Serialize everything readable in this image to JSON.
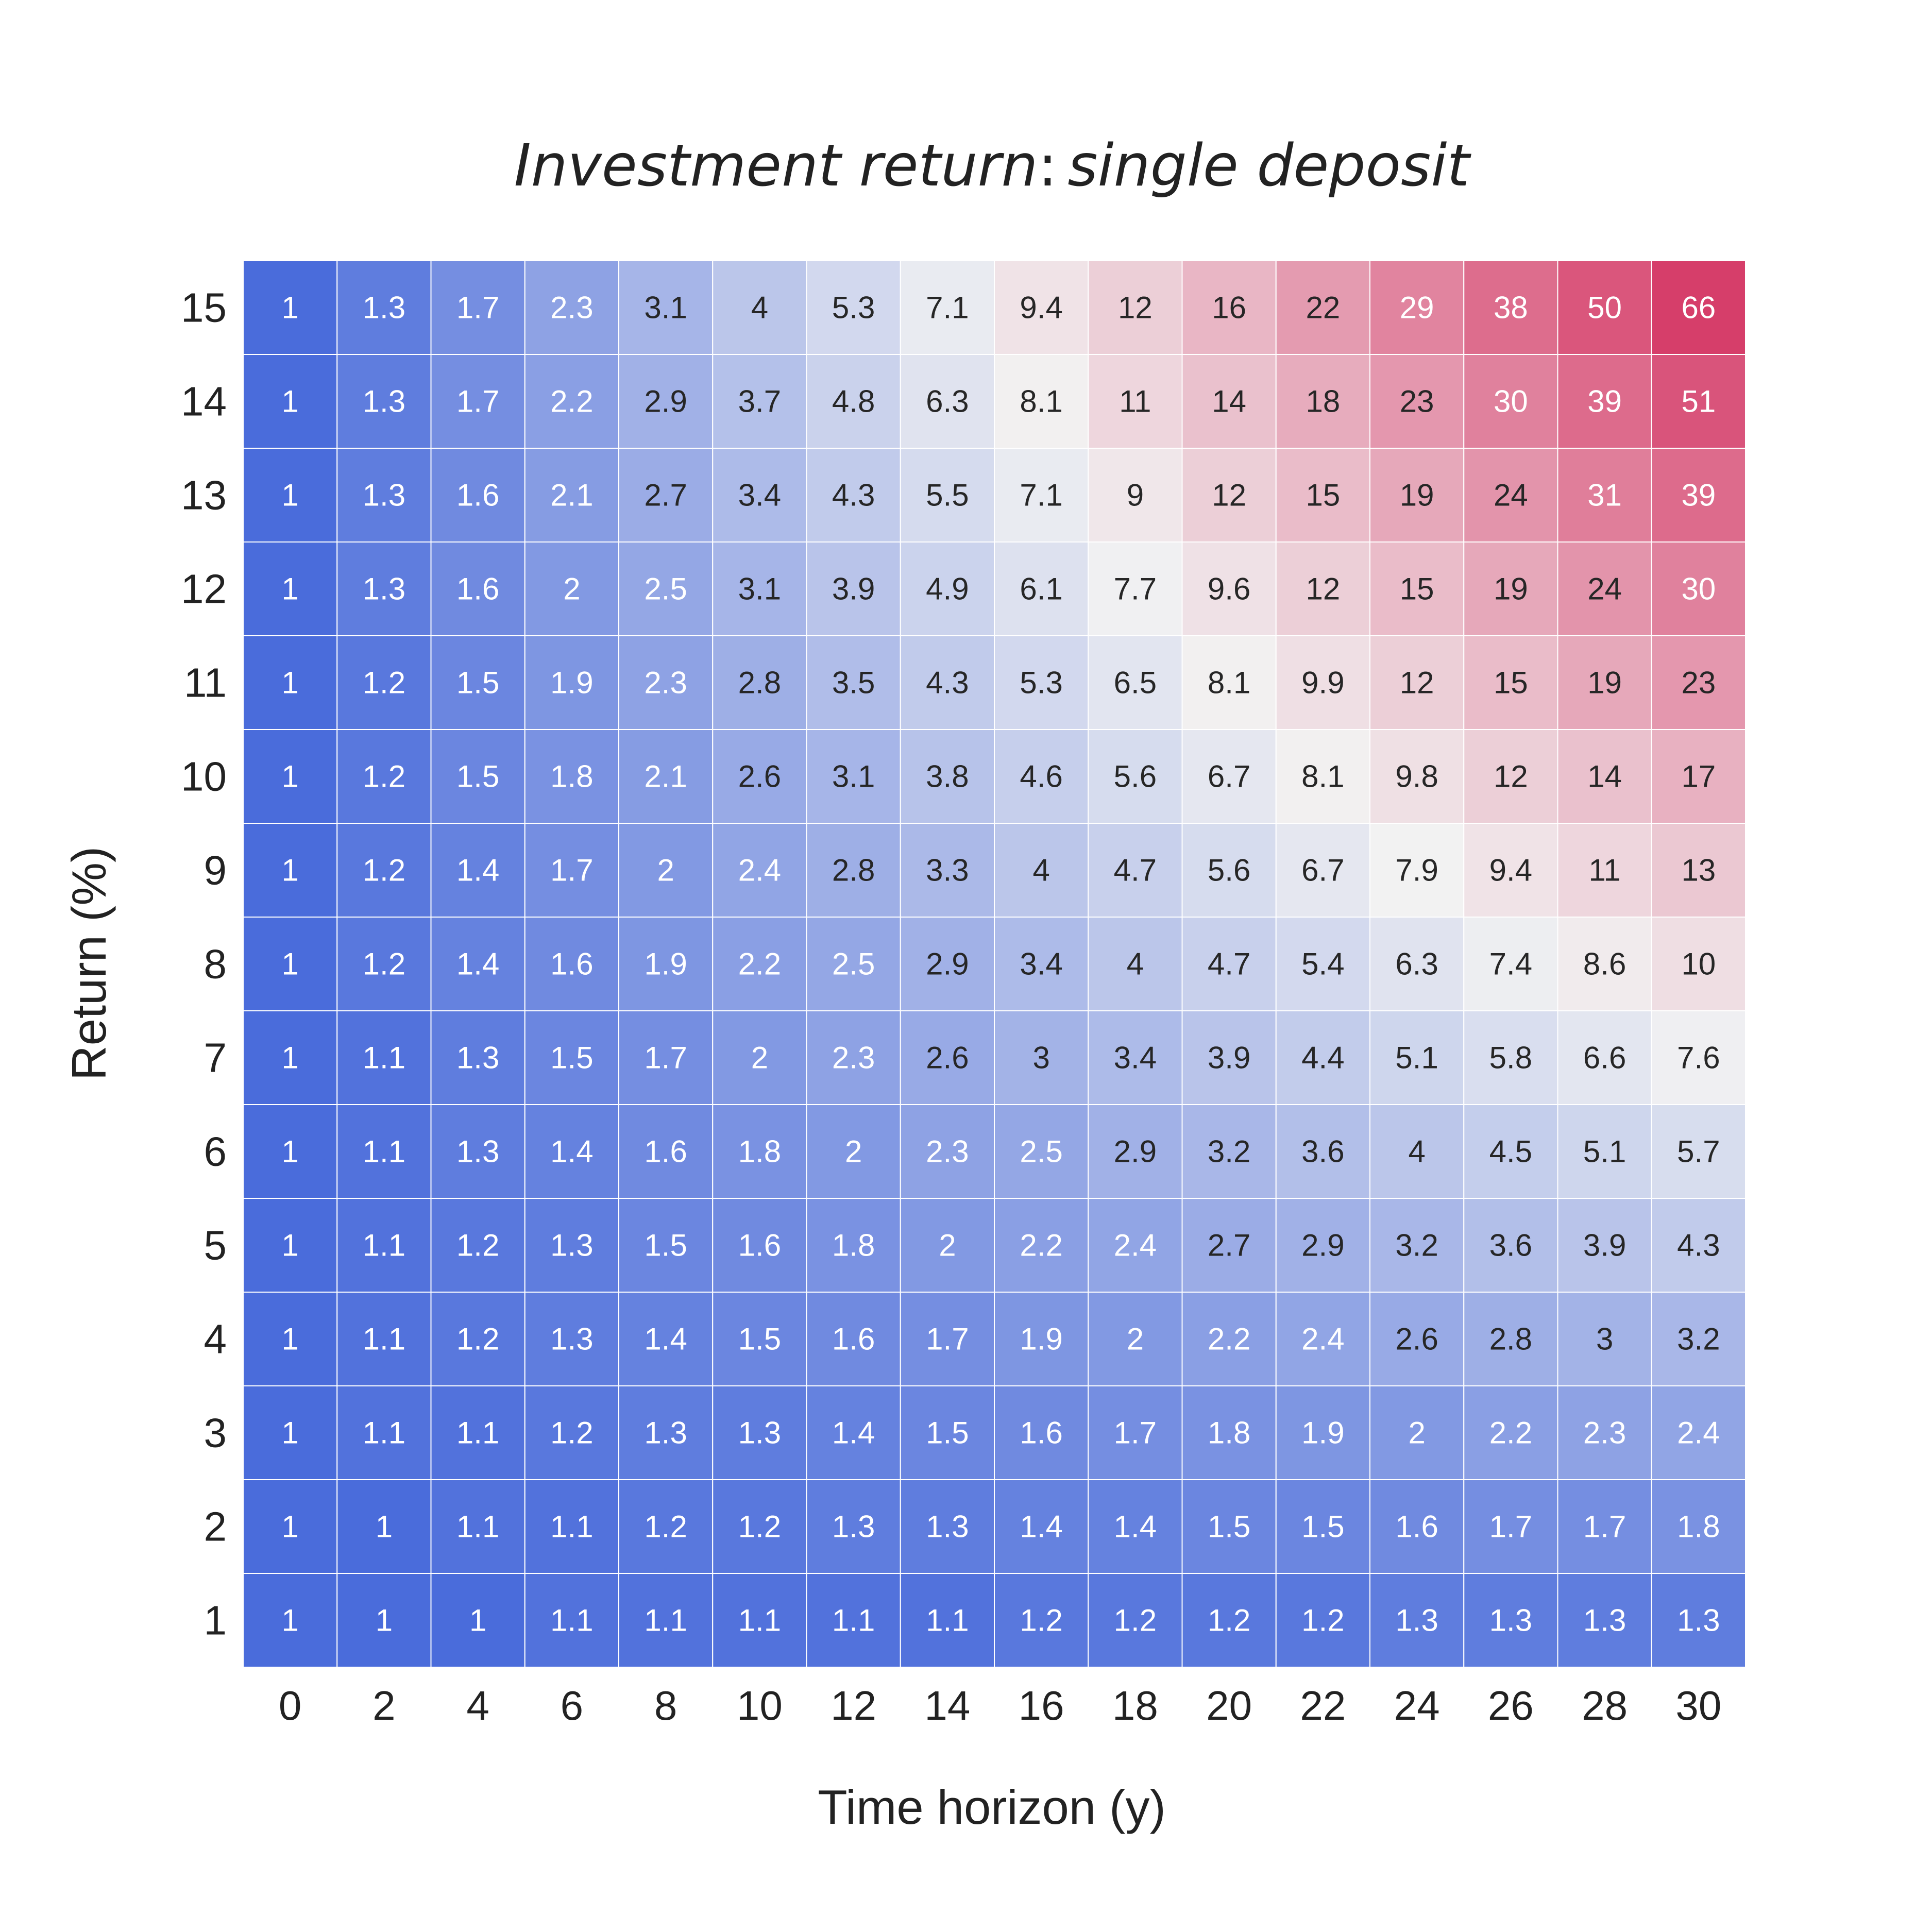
{
  "chart_data": {
    "type": "heatmap",
    "title_main": "Investment return",
    "title_sep": ":",
    "title_sub": "single deposit",
    "xlabel": "Time horizon (y)",
    "ylabel": "Return (%)",
    "x": [
      0,
      2,
      4,
      6,
      8,
      10,
      12,
      14,
      16,
      18,
      20,
      22,
      24,
      26,
      28,
      30
    ],
    "y": [
      15,
      14,
      13,
      12,
      11,
      10,
      9,
      8,
      7,
      6,
      5,
      4,
      3,
      2,
      1
    ],
    "values": [
      [
        "1",
        "1.3",
        "1.7",
        "2.3",
        "3.1",
        "4",
        "5.3",
        "7.1",
        "9.4",
        "12",
        "16",
        "22",
        "29",
        "38",
        "50",
        "66"
      ],
      [
        "1",
        "1.3",
        "1.7",
        "2.2",
        "2.9",
        "3.7",
        "4.8",
        "6.3",
        "8.1",
        "11",
        "14",
        "18",
        "23",
        "30",
        "39",
        "51"
      ],
      [
        "1",
        "1.3",
        "1.6",
        "2.1",
        "2.7",
        "3.4",
        "4.3",
        "5.5",
        "7.1",
        "9",
        "12",
        "15",
        "19",
        "24",
        "31",
        "39"
      ],
      [
        "1",
        "1.3",
        "1.6",
        "2",
        "2.5",
        "3.1",
        "3.9",
        "4.9",
        "6.1",
        "7.7",
        "9.6",
        "12",
        "15",
        "19",
        "24",
        "30"
      ],
      [
        "1",
        "1.2",
        "1.5",
        "1.9",
        "2.3",
        "2.8",
        "3.5",
        "4.3",
        "5.3",
        "6.5",
        "8.1",
        "9.9",
        "12",
        "15",
        "19",
        "23"
      ],
      [
        "1",
        "1.2",
        "1.5",
        "1.8",
        "2.1",
        "2.6",
        "3.1",
        "3.8",
        "4.6",
        "5.6",
        "6.7",
        "8.1",
        "9.8",
        "12",
        "14",
        "17"
      ],
      [
        "1",
        "1.2",
        "1.4",
        "1.7",
        "2",
        "2.4",
        "2.8",
        "3.3",
        "4",
        "4.7",
        "5.6",
        "6.7",
        "7.9",
        "9.4",
        "11",
        "13"
      ],
      [
        "1",
        "1.2",
        "1.4",
        "1.6",
        "1.9",
        "2.2",
        "2.5",
        "2.9",
        "3.4",
        "4",
        "4.7",
        "5.4",
        "6.3",
        "7.4",
        "8.6",
        "10"
      ],
      [
        "1",
        "1.1",
        "1.3",
        "1.5",
        "1.7",
        "2",
        "2.3",
        "2.6",
        "3",
        "3.4",
        "3.9",
        "4.4",
        "5.1",
        "5.8",
        "6.6",
        "7.6"
      ],
      [
        "1",
        "1.1",
        "1.3",
        "1.4",
        "1.6",
        "1.8",
        "2",
        "2.3",
        "2.5",
        "2.9",
        "3.2",
        "3.6",
        "4",
        "4.5",
        "5.1",
        "5.7"
      ],
      [
        "1",
        "1.1",
        "1.2",
        "1.3",
        "1.5",
        "1.6",
        "1.8",
        "2",
        "2.2",
        "2.4",
        "2.7",
        "2.9",
        "3.2",
        "3.6",
        "3.9",
        "4.3"
      ],
      [
        "1",
        "1.1",
        "1.2",
        "1.3",
        "1.4",
        "1.5",
        "1.6",
        "1.7",
        "1.9",
        "2",
        "2.2",
        "2.4",
        "2.6",
        "2.8",
        "3",
        "3.2"
      ],
      [
        "1",
        "1.1",
        "1.1",
        "1.2",
        "1.3",
        "1.3",
        "1.4",
        "1.5",
        "1.6",
        "1.7",
        "1.8",
        "1.9",
        "2",
        "2.2",
        "2.3",
        "2.4"
      ],
      [
        "1",
        "1",
        "1.1",
        "1.1",
        "1.2",
        "1.2",
        "1.3",
        "1.3",
        "1.4",
        "1.4",
        "1.5",
        "1.5",
        "1.6",
        "1.7",
        "1.7",
        "1.8"
      ],
      [
        "1",
        "1",
        "1",
        "1.1",
        "1.1",
        "1.1",
        "1.1",
        "1.1",
        "1.2",
        "1.2",
        "1.2",
        "1.2",
        "1.3",
        "1.3",
        "1.3",
        "1.3"
      ]
    ],
    "colormap": {
      "low": "#4a6cdb",
      "mid": "#f2f2f2",
      "high": "#d63e6a",
      "center_value": 7.9,
      "scale": "log"
    },
    "grid_color": "#ffffff"
  }
}
